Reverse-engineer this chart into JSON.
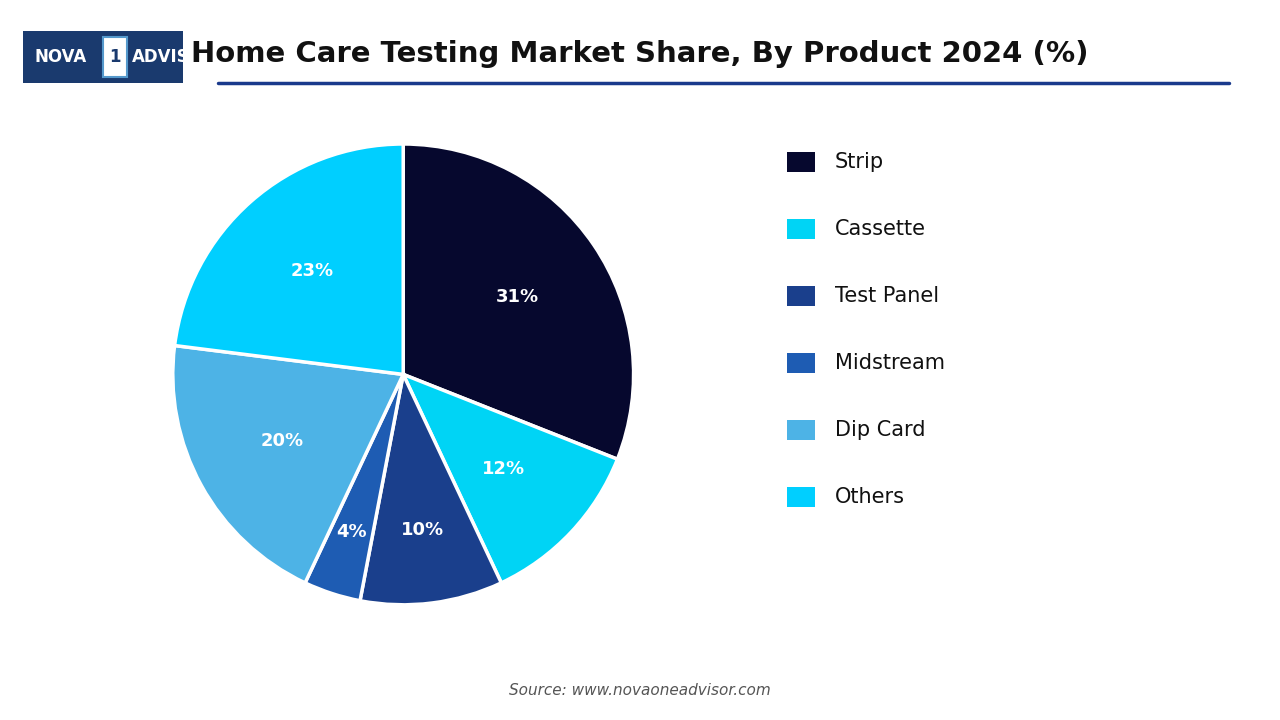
{
  "title": "Home Care Testing Market Share, By Product 2024 (%)",
  "labels": [
    "Strip",
    "Cassette",
    "Test Panel",
    "Midstream",
    "Dip Card",
    "Others"
  ],
  "values": [
    31,
    12,
    10,
    4,
    20,
    23
  ],
  "colors": [
    "#06082e",
    "#00d4f5",
    "#1a3f8c",
    "#1e5cb3",
    "#4db3e6",
    "#00cfff"
  ],
  "pct_labels": [
    "31%",
    "12%",
    "10%",
    "4%",
    "20%",
    "23%"
  ],
  "source_text": "Source: www.novaoneadvisor.com",
  "line_color": "#1a3a8c",
  "background_color": "#ffffff",
  "legend_colors": [
    "#06082e",
    "#00d4f5",
    "#1a3f8c",
    "#1e5cb3",
    "#4db3e6",
    "#00cfff"
  ]
}
